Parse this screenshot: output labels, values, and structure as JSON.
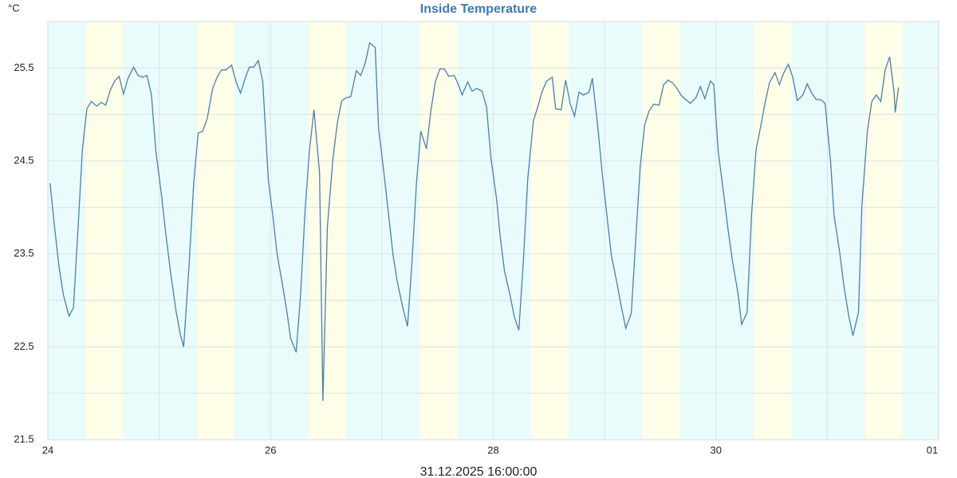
{
  "chart_data": {
    "type": "line",
    "title": "Inside Temperature",
    "ylabel": "°C",
    "xlabel": "31.12.2025 16:00:00",
    "xlim": [
      24,
      32
    ],
    "xticks": [
      24,
      26,
      28,
      30,
      {
        "value": 32,
        "label": "01"
      }
    ],
    "x_minor_ticks": [
      25,
      27,
      29,
      31
    ],
    "ylim": [
      21.5,
      26
    ],
    "yticks": [
      21.5,
      22.5,
      23.5,
      24.5,
      25.5
    ],
    "y_minor_ticks": [
      22,
      23,
      24,
      25
    ],
    "grid": true,
    "day_bands": [
      [
        24.34,
        24.68
      ],
      [
        25.34,
        25.68
      ],
      [
        26.34,
        26.68
      ],
      [
        27.34,
        27.68
      ],
      [
        28.34,
        28.68
      ],
      [
        29.34,
        29.68
      ],
      [
        30.34,
        30.68
      ],
      [
        31.34,
        31.68
      ]
    ],
    "day_color": "#fdfde8",
    "night_color": "#e9fbfb",
    "series": [
      {
        "color": "#4a7fae",
        "x": [
          24.02,
          24.06,
          24.1,
          24.14,
          24.19,
          24.23,
          24.27,
          24.31,
          24.35,
          24.39,
          24.44,
          24.48,
          24.52,
          24.56,
          24.6,
          24.64,
          24.68,
          24.72,
          24.77,
          24.81,
          24.85,
          24.89,
          24.93,
          24.97,
          25.02,
          25.06,
          25.1,
          25.15,
          25.19,
          25.22,
          25.27,
          25.31,
          25.35,
          25.39,
          25.43,
          25.48,
          25.52,
          25.56,
          25.6,
          25.65,
          25.69,
          25.73,
          25.77,
          25.81,
          25.85,
          25.89,
          25.93,
          25.98,
          26.02,
          26.06,
          26.11,
          26.15,
          26.18,
          26.23,
          26.27,
          26.31,
          26.35,
          26.39,
          26.44,
          26.47,
          26.51,
          26.56,
          26.6,
          26.64,
          26.68,
          26.72,
          26.77,
          26.81,
          26.85,
          26.89,
          26.94,
          26.97,
          27.02,
          27.06,
          27.1,
          27.14,
          27.19,
          27.23,
          27.27,
          27.31,
          27.35,
          27.4,
          27.44,
          27.48,
          27.52,
          27.56,
          27.6,
          27.65,
          27.69,
          27.72,
          27.77,
          27.81,
          27.85,
          27.9,
          27.94,
          27.98,
          28.03,
          28.06,
          28.1,
          28.15,
          28.19,
          28.23,
          28.27,
          28.31,
          28.36,
          28.4,
          28.44,
          28.48,
          28.53,
          28.56,
          28.61,
          28.65,
          28.69,
          28.73,
          28.77,
          28.81,
          28.86,
          28.89,
          28.94,
          28.98,
          29.02,
          29.06,
          29.11,
          29.15,
          29.19,
          29.24,
          29.28,
          29.32,
          29.36,
          29.4,
          29.44,
          29.49,
          29.53,
          29.57,
          29.61,
          29.65,
          29.69,
          29.74,
          29.77,
          29.82,
          29.86,
          29.9,
          29.95,
          29.98,
          30.02,
          30.07,
          30.11,
          30.15,
          30.2,
          30.23,
          30.28,
          30.32,
          30.36,
          30.4,
          30.44,
          30.48,
          30.53,
          30.57,
          30.61,
          30.65,
          30.69,
          30.73,
          30.78,
          30.82,
          30.86,
          30.9,
          30.94,
          30.98,
          31.03,
          31.06,
          31.11,
          31.15,
          31.19,
          31.23,
          31.28,
          31.31,
          31.36,
          31.4,
          31.44,
          31.48,
          31.52,
          31.56,
          31.6,
          31.61,
          31.64
        ],
        "values": [
          24.26,
          23.79,
          23.36,
          23.06,
          22.83,
          22.92,
          23.75,
          24.62,
          25.06,
          25.14,
          25.09,
          25.13,
          25.1,
          25.26,
          25.36,
          25.41,
          25.22,
          25.39,
          25.51,
          25.42,
          25.4,
          25.42,
          25.21,
          24.61,
          24.14,
          23.71,
          23.32,
          22.89,
          22.63,
          22.5,
          23.41,
          24.26,
          24.8,
          24.82,
          24.95,
          25.28,
          25.4,
          25.48,
          25.48,
          25.53,
          25.35,
          25.23,
          25.38,
          25.51,
          25.51,
          25.58,
          25.35,
          24.29,
          23.92,
          23.49,
          23.15,
          22.85,
          22.59,
          22.44,
          23.06,
          23.96,
          24.62,
          25.05,
          24.37,
          21.92,
          23.79,
          24.52,
          24.91,
          25.15,
          25.18,
          25.19,
          25.47,
          25.42,
          25.55,
          25.77,
          25.72,
          24.85,
          24.35,
          23.92,
          23.49,
          23.19,
          22.91,
          22.72,
          23.41,
          24.26,
          24.82,
          24.63,
          25.04,
          25.35,
          25.49,
          25.49,
          25.41,
          25.42,
          25.31,
          25.21,
          25.35,
          25.25,
          25.28,
          25.25,
          25.08,
          24.52,
          24.09,
          23.71,
          23.32,
          23.06,
          22.82,
          22.68,
          23.41,
          24.31,
          24.93,
          25.08,
          25.25,
          25.36,
          25.4,
          25.06,
          25.05,
          25.37,
          25.12,
          24.98,
          25.24,
          25.21,
          25.24,
          25.39,
          24.86,
          24.35,
          23.92,
          23.49,
          23.19,
          22.93,
          22.7,
          22.86,
          23.66,
          24.44,
          24.89,
          25.04,
          25.11,
          25.1,
          25.32,
          25.37,
          25.34,
          25.28,
          25.2,
          25.15,
          25.12,
          25.18,
          25.3,
          25.17,
          25.36,
          25.32,
          24.61,
          24.14,
          23.75,
          23.41,
          23.06,
          22.74,
          22.87,
          23.92,
          24.62,
          24.86,
          25.12,
          25.34,
          25.45,
          25.32,
          25.45,
          25.54,
          25.4,
          25.15,
          25.21,
          25.33,
          25.23,
          25.16,
          25.16,
          25.12,
          24.48,
          23.92,
          23.53,
          23.15,
          22.85,
          22.62,
          22.87,
          24.01,
          24.82,
          25.14,
          25.21,
          25.14,
          25.48,
          25.62,
          25.23,
          25.02,
          25.29
        ]
      }
    ]
  }
}
